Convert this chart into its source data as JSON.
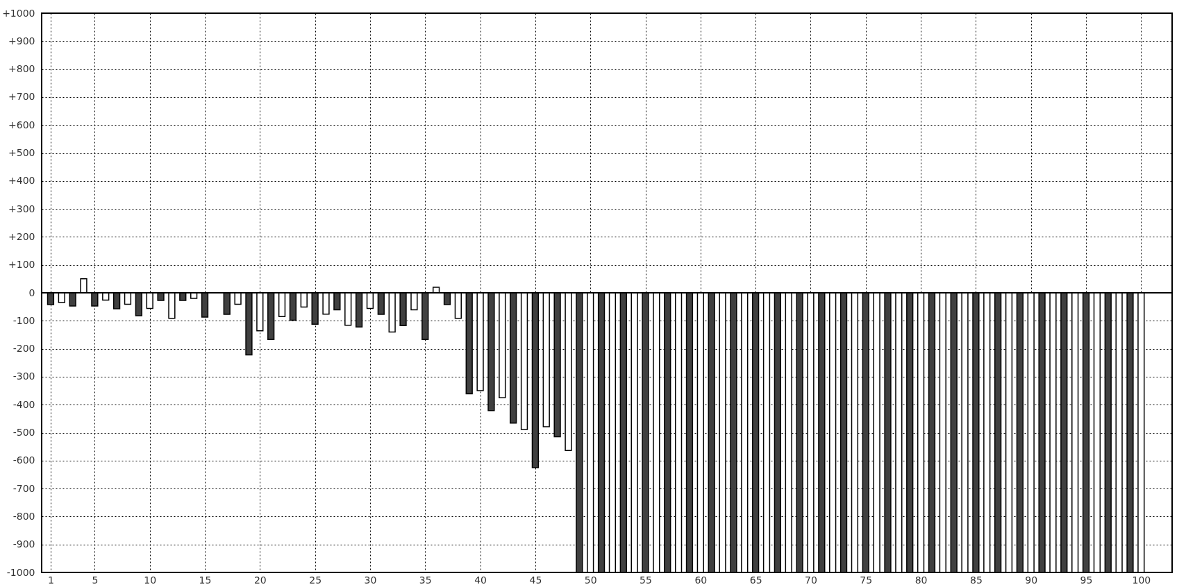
{
  "chart_data": {
    "type": "bar",
    "x": [
      1,
      2,
      3,
      4,
      5,
      6,
      7,
      8,
      9,
      10,
      11,
      12,
      13,
      14,
      15,
      16,
      17,
      18,
      19,
      20,
      21,
      22,
      23,
      24,
      25,
      26,
      27,
      28,
      29,
      30,
      31,
      32,
      33,
      34,
      35,
      36,
      37,
      38,
      39,
      40,
      41,
      42,
      43,
      44,
      45,
      46,
      47,
      48,
      49,
      50,
      51,
      52,
      53,
      54,
      55,
      56,
      57,
      58,
      59,
      60,
      61,
      62,
      63,
      64,
      65,
      66,
      67,
      68,
      69,
      70,
      71,
      72,
      73,
      74,
      75,
      76,
      77,
      78,
      79,
      80,
      81,
      82,
      83,
      84,
      85,
      86,
      87,
      88,
      89,
      90,
      91,
      92,
      93,
      94,
      95,
      96,
      97,
      98,
      99,
      100
    ],
    "values": [
      -42,
      -35,
      -47,
      50,
      -47,
      -26,
      -57,
      -41,
      -82,
      -56,
      -27,
      -91,
      -27,
      -20,
      -87,
      null,
      -77,
      -41,
      -222,
      -136,
      -167,
      -85,
      -98,
      -51,
      -112,
      -76,
      -61,
      -116,
      -122,
      -56,
      -77,
      -140,
      -117,
      -61,
      -167,
      20,
      -42,
      -91,
      -361,
      -350,
      -421,
      -375,
      -466,
      -489,
      -625,
      -479,
      -515,
      -564,
      -1000,
      -1000,
      -1000,
      -1000,
      -1000,
      -1000,
      -1000,
      -1000,
      -1000,
      -1000,
      -1000,
      -1000,
      -1000,
      -1000,
      -1000,
      -1000,
      -1000,
      -1000,
      -1000,
      -1000,
      -1000,
      -1000,
      -1000,
      -1000,
      -1000,
      -1000,
      -1000,
      -1000,
      -1000,
      -1000,
      -1000,
      -1000,
      -1000,
      -1000,
      -1000,
      -1000,
      -1000,
      -1000,
      -1000,
      -1000,
      -1000,
      -1000,
      -1000,
      -1000,
      -1000,
      -1000,
      -1000,
      -1000,
      -1000,
      -1000,
      -1000,
      -1000
    ],
    "colors": [
      "#404040",
      "#ffffff",
      "#404040",
      "#ffffff",
      "#404040",
      "#ffffff",
      "#404040",
      "#ffffff",
      "#404040",
      "#ffffff",
      "#404040",
      "#ffffff",
      "#404040",
      "#ffffff",
      "#404040",
      "#ffffff",
      "#404040",
      "#ffffff",
      "#404040",
      "#ffffff",
      "#404040",
      "#ffffff",
      "#404040",
      "#ffffff",
      "#404040",
      "#ffffff",
      "#404040",
      "#ffffff",
      "#404040",
      "#ffffff",
      "#404040",
      "#ffffff",
      "#404040",
      "#ffffff",
      "#404040",
      "#ffffff",
      "#404040",
      "#ffffff",
      "#404040",
      "#ffffff",
      "#404040",
      "#ffffff",
      "#404040",
      "#ffffff",
      "#404040",
      "#ffffff",
      "#404040",
      "#ffffff",
      "#404040",
      "#ffffff",
      "#404040",
      "#ffffff",
      "#404040",
      "#ffffff",
      "#404040",
      "#ffffff",
      "#404040",
      "#ffffff",
      "#404040",
      "#ffffff",
      "#404040",
      "#ffffff",
      "#404040",
      "#ffffff",
      "#404040",
      "#ffffff",
      "#404040",
      "#ffffff",
      "#404040",
      "#ffffff",
      "#404040",
      "#ffffff",
      "#404040",
      "#ffffff",
      "#404040",
      "#ffffff",
      "#404040",
      "#ffffff",
      "#404040",
      "#ffffff",
      "#404040",
      "#ffffff",
      "#404040",
      "#ffffff",
      "#404040",
      "#ffffff",
      "#404040",
      "#ffffff",
      "#404040",
      "#ffffff",
      "#404040",
      "#ffffff",
      "#404040",
      "#ffffff",
      "#404040",
      "#ffffff",
      "#404040",
      "#ffffff",
      "#404040",
      "#ffffff"
    ],
    "xlim": [
      0.5,
      102.5
    ],
    "xticks": [
      1,
      5,
      10,
      15,
      20,
      25,
      30,
      35,
      40,
      45,
      50,
      55,
      60,
      65,
      70,
      75,
      80,
      85,
      90,
      95,
      100
    ],
    "ylim": [
      -1000,
      1000
    ],
    "yticks": [
      {
        "value": -1000,
        "label": "-1000"
      },
      {
        "value": -900,
        "label": "-900"
      },
      {
        "value": -800,
        "label": "-800"
      },
      {
        "value": -700,
        "label": "-700"
      },
      {
        "value": -600,
        "label": "-600"
      },
      {
        "value": -500,
        "label": "-500"
      },
      {
        "value": -400,
        "label": "-400"
      },
      {
        "value": -300,
        "label": "-300"
      },
      {
        "value": -200,
        "label": "-200"
      },
      {
        "value": -100,
        "label": "-100"
      },
      0,
      {
        "value": 100,
        "label": "+100"
      },
      {
        "value": 200,
        "label": "+200"
      },
      {
        "value": 300,
        "label": "+300"
      },
      {
        "value": 400,
        "label": "+400"
      },
      {
        "value": 500,
        "label": "+500"
      },
      {
        "value": 600,
        "label": "+600"
      },
      {
        "value": 700,
        "label": "+700"
      },
      {
        "value": 800,
        "label": "+800"
      },
      {
        "value": 900,
        "label": "+900"
      },
      {
        "value": 1000,
        "label": "+1000"
      }
    ],
    "ref_lines": [
      {
        "axis": "y",
        "value": 0,
        "color": "#000000"
      }
    ],
    "grid": true
  }
}
